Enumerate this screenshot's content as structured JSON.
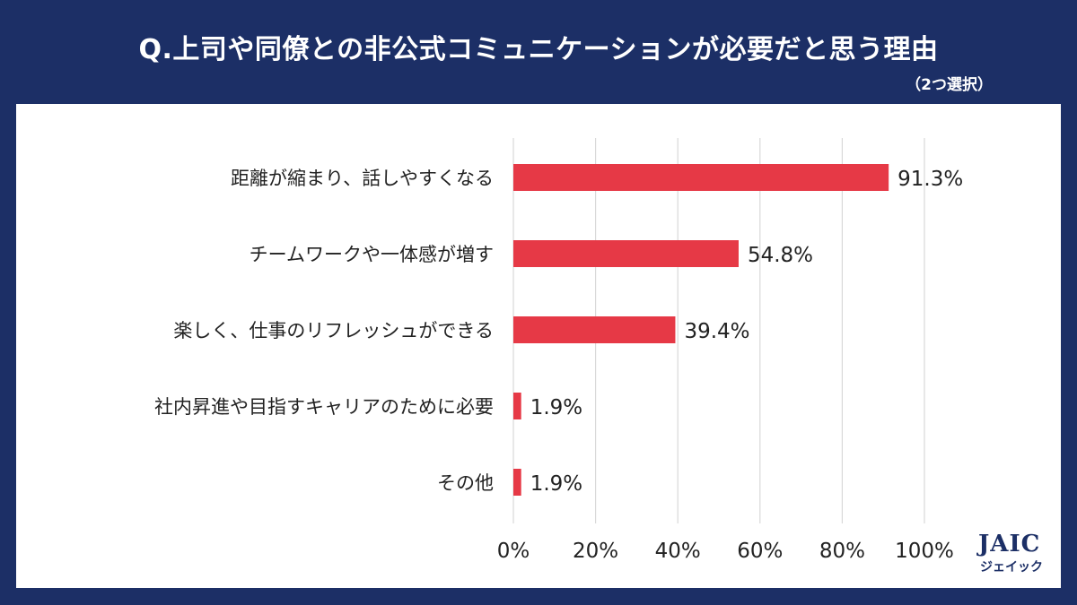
{
  "header": {
    "title": "Q.上司や同僚との非公式コミュニケーションが必要だと思う理由",
    "subtitle": "（2つ選択）"
  },
  "logo": {
    "main": "JAIC",
    "sub": "ジェイック"
  },
  "chart_data": {
    "type": "bar",
    "orientation": "horizontal",
    "categories": [
      "距離が縮まり、話しやすくなる",
      "チームワークや一体感が増す",
      "楽しく、仕事のリフレッシュができる",
      "社内昇進や目指すキャリアのために必要",
      "その他"
    ],
    "values": [
      91.3,
      54.8,
      39.4,
      1.9,
      1.9
    ],
    "data_labels": [
      "91.3%",
      "54.8%",
      "39.4%",
      "1.9%",
      "1.9%"
    ],
    "xlim": [
      0,
      100
    ],
    "xticks": [
      0,
      20,
      40,
      60,
      80,
      100
    ],
    "xtick_labels": [
      "0%",
      "20%",
      "40%",
      "60%",
      "80%",
      "100%"
    ],
    "grid": true,
    "legend": "none",
    "colors": {
      "bar": "#e63946",
      "grid": "#d9d9d9",
      "background": "#1c2f66"
    }
  }
}
